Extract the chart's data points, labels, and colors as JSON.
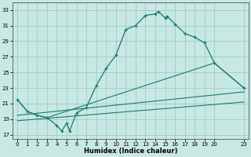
{
  "bg_color": "#c8e8e4",
  "grid_color": "#9eccc8",
  "line_color": "#1a7a6a",
  "xlabel": "Humidex (Indice chaleur)",
  "xlim": [
    -0.5,
    23.5
  ],
  "ylim": [
    16.5,
    34.0
  ],
  "xticks": [
    0,
    1,
    2,
    3,
    4,
    5,
    6,
    7,
    8,
    9,
    10,
    11,
    12,
    13,
    14,
    15,
    16,
    17,
    18,
    19,
    20,
    23
  ],
  "yticks": [
    17,
    19,
    21,
    23,
    25,
    27,
    29,
    31,
    33
  ],
  "main_x": [
    0,
    1,
    2,
    3,
    4,
    4.5,
    5,
    5.3,
    6,
    7,
    8,
    9,
    10,
    11,
    12,
    13,
    14,
    14.3,
    15,
    15.2,
    16,
    17,
    18,
    19,
    20,
    23
  ],
  "main_y": [
    21.5,
    20.0,
    19.5,
    19.2,
    18.2,
    17.5,
    18.5,
    17.5,
    19.8,
    20.5,
    23.3,
    25.5,
    27.2,
    30.5,
    31.0,
    32.3,
    32.5,
    32.8,
    32.0,
    32.2,
    31.2,
    30.0,
    29.5,
    28.8,
    26.2,
    23.0
  ],
  "line2_x": [
    0,
    1,
    2,
    3,
    20,
    23
  ],
  "line2_y": [
    21.5,
    20.0,
    19.5,
    19.2,
    26.2,
    23.0
  ],
  "line3_x": [
    0,
    23
  ],
  "line3_y": [
    19.5,
    22.5
  ],
  "line4_x": [
    0,
    23
  ],
  "line4_y": [
    18.8,
    21.2
  ],
  "xlabel_fontsize": 6.0,
  "tick_fontsize": 5.0
}
